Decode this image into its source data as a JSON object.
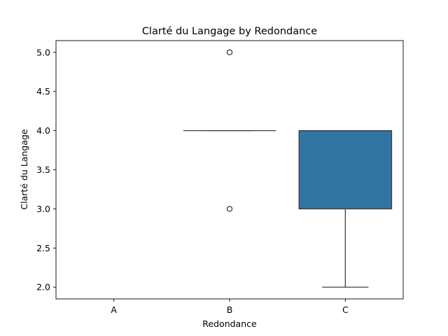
{
  "chart_data": {
    "type": "box",
    "title": "Clarté du Langage by Redondance",
    "xlabel": "Redondance",
    "ylabel": "Clarté du Langage",
    "categories": [
      "A",
      "B",
      "C"
    ],
    "ylim": [
      1.85,
      5.15
    ],
    "yticks": [
      2.0,
      2.5,
      3.0,
      3.5,
      4.0,
      4.5,
      5.0
    ],
    "ytick_labels": [
      "2.0",
      "2.5",
      "3.0",
      "3.5",
      "4.0",
      "4.5",
      "5.0"
    ],
    "boxes": [
      {
        "category": "A",
        "empty": true
      },
      {
        "category": "B",
        "q1": 4.0,
        "median": 4.0,
        "q3": 4.0,
        "whisker_low": 4.0,
        "whisker_high": 4.0,
        "outliers": [
          3.0,
          5.0
        ]
      },
      {
        "category": "C",
        "q1": 3.0,
        "median": 4.0,
        "q3": 4.0,
        "whisker_low": 2.0,
        "whisker_high": 4.0,
        "outliers": []
      }
    ],
    "box_color": "#3274a1",
    "line_color": "#3f3f3f"
  }
}
